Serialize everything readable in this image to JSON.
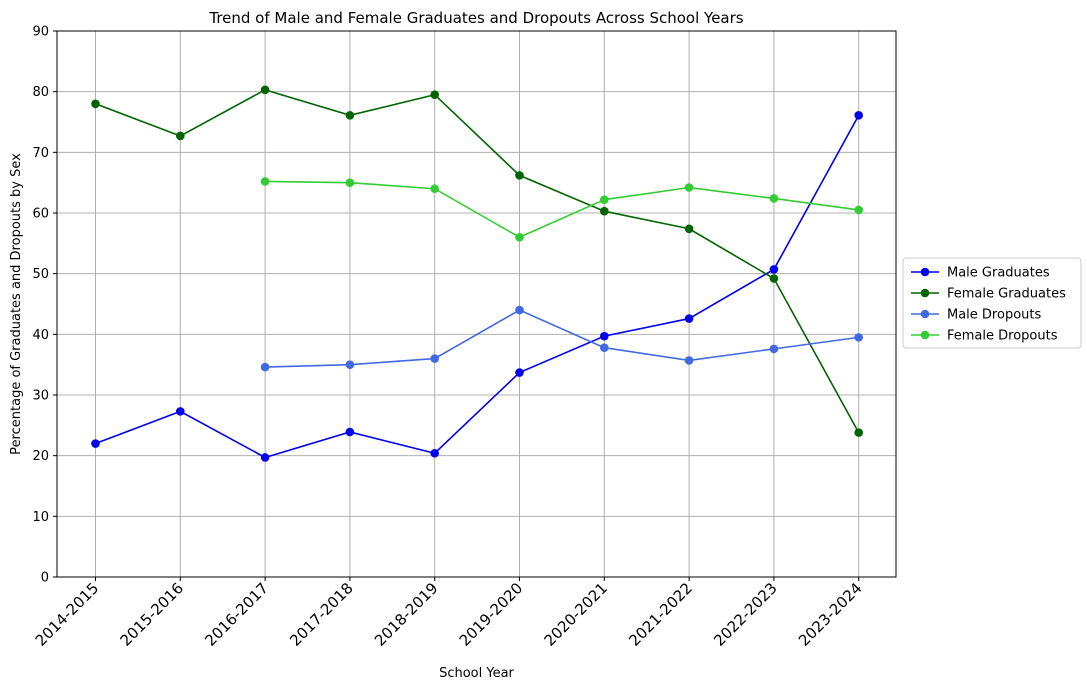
{
  "chart_data": {
    "type": "line",
    "title": "Trend of Male and Female Graduates and Dropouts Across School Years",
    "xlabel": "School Year",
    "ylabel": "Percentage of Graduates and Dropouts by Sex",
    "ylim": [
      0,
      90
    ],
    "yticks": [
      0,
      10,
      20,
      30,
      40,
      50,
      60,
      70,
      80,
      90
    ],
    "grid": true,
    "legend_position": "right",
    "categories": [
      "2014-2015",
      "2015-2016",
      "2016-2017",
      "2017-2018",
      "2018-2019",
      "2019-2020",
      "2020-2021",
      "2021-2022",
      "2022-2023",
      "2023-2024"
    ],
    "series": [
      {
        "name": "Male Graduates",
        "color": "#0000ee",
        "values": [
          22.0,
          27.3,
          19.7,
          23.9,
          20.4,
          33.7,
          39.7,
          42.6,
          50.7,
          76.1
        ]
      },
      {
        "name": "Female Graduates",
        "color": "#006400",
        "values": [
          78.0,
          72.7,
          80.3,
          76.1,
          79.5,
          66.2,
          60.3,
          57.4,
          49.2,
          23.8
        ]
      },
      {
        "name": "Male Dropouts",
        "color": "#4169e1",
        "values": [
          null,
          null,
          34.6,
          35.0,
          36.0,
          44.0,
          37.8,
          35.7,
          37.6,
          39.5
        ]
      },
      {
        "name": "Female Dropouts",
        "color": "#32cd32",
        "values": [
          null,
          null,
          65.2,
          65.0,
          64.0,
          56.0,
          62.2,
          64.2,
          62.4,
          60.5
        ]
      }
    ]
  }
}
